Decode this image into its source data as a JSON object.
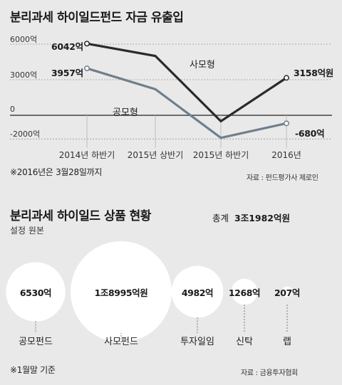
{
  "chart_data": [
    {
      "type": "line",
      "title": "분리과세 하이일드펀드 자금 유출입",
      "categories": [
        "2014년 하반기",
        "2015년 상반기",
        "2015년 하반기",
        "2016년"
      ],
      "yticks": [
        6000,
        3000,
        0,
        -2000
      ],
      "ytick_labels": [
        "6000억",
        "3000억",
        "0",
        "-2000억"
      ],
      "ylim": [
        -2300,
        7000
      ],
      "series": [
        {
          "name": "사모형",
          "values": [
            6042,
            5000,
            -500,
            3158
          ],
          "data_labels": [
            "6042억",
            "",
            "",
            "3158억원"
          ],
          "color": "#2a2a2a"
        },
        {
          "name": "공모형",
          "values": [
            3957,
            2200,
            -1900,
            -680
          ],
          "data_labels": [
            "3957억",
            "",
            "",
            "-680억"
          ],
          "color": "#6f7f8c"
        }
      ],
      "note": "※2016년은 3월28일까지",
      "source": "자료 : 펀드평가사 제로인"
    },
    {
      "type": "bubble",
      "title": "분리과세 하이일드 상품 현황",
      "subtitle": "설정 원본",
      "total_label": "총계",
      "total_value": "3조1982억원",
      "items": [
        {
          "name": "공모펀드",
          "value": 6530,
          "value_label": "6530억"
        },
        {
          "name": "사모펀드",
          "value": 18995,
          "value_label": "1조8995억원"
        },
        {
          "name": "투자일임",
          "value": 4982,
          "value_label": "4982억"
        },
        {
          "name": "신탁",
          "value": 1268,
          "value_label": "1268억"
        },
        {
          "name": "랩",
          "value": 207,
          "value_label": "207억"
        }
      ],
      "note": "※1월말 기준",
      "source": "자료 : 금융투자협회"
    }
  ]
}
